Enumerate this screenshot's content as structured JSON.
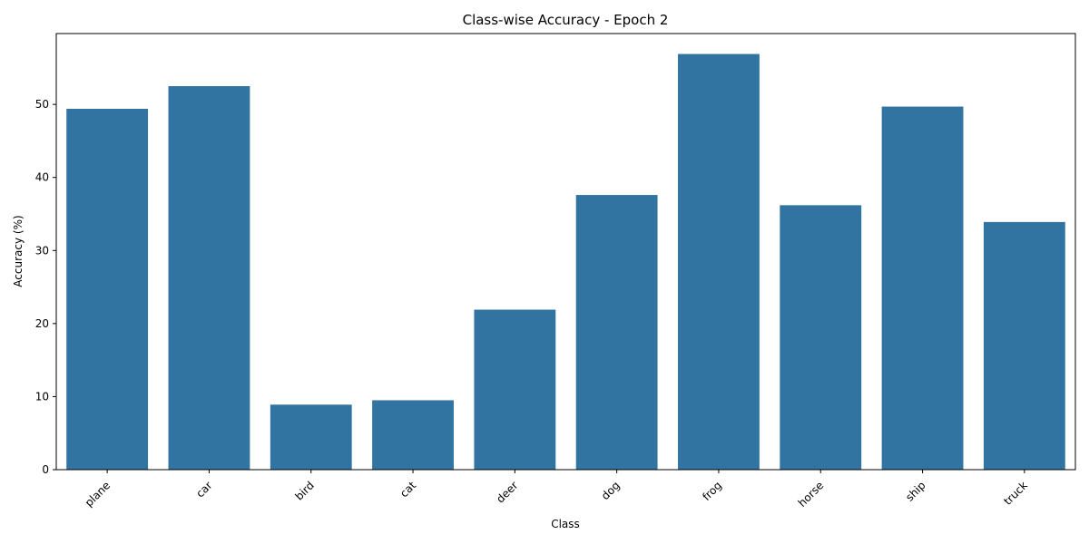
{
  "chart_data": {
    "type": "bar",
    "title": "Class-wise Accuracy - Epoch 2",
    "xlabel": "Class",
    "ylabel": "Accuracy (%)",
    "categories": [
      "plane",
      "car",
      "bird",
      "cat",
      "deer",
      "dog",
      "frog",
      "horse",
      "ship",
      "truck"
    ],
    "values": [
      49.4,
      52.5,
      8.9,
      9.5,
      21.9,
      37.6,
      56.9,
      36.2,
      49.7,
      33.9
    ],
    "ylim": [
      0,
      59.7
    ],
    "yticks": [
      0,
      10,
      20,
      30,
      40,
      50
    ],
    "xtick_rotation_deg": 45,
    "grid": false,
    "colors": {
      "bar": "#3274a1"
    }
  }
}
